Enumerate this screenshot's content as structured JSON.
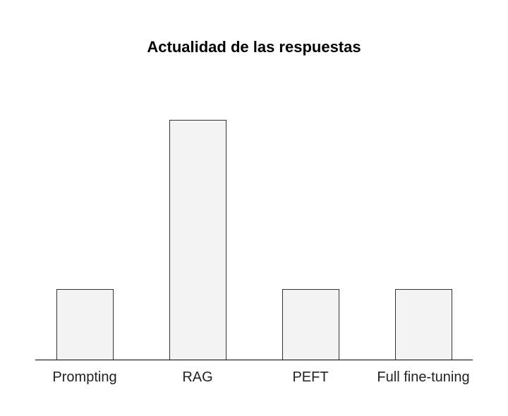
{
  "chart_data": {
    "type": "bar",
    "title": "Actualidad de las respuestas",
    "xlabel": "",
    "ylabel": "",
    "categories": [
      "Prompting",
      "RAG",
      "PEFT",
      "Full fine-tuning"
    ],
    "values": [
      1,
      3.4,
      1,
      1
    ],
    "ylim": [
      0,
      4
    ],
    "grid": false,
    "colors": {
      "bar_fill": "#f3f3f3",
      "bar_stroke": "#333333",
      "axis": "#000000"
    }
  }
}
